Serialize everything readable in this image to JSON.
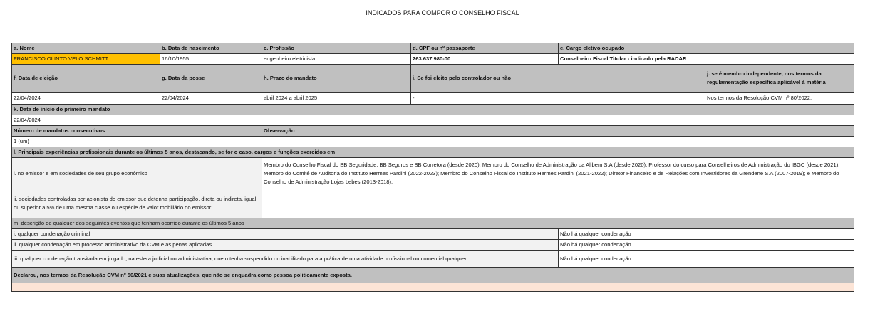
{
  "title": "INDICADOS PARA COMPOR O CONSELHO FISCAL",
  "colors": {
    "header": "#c0c0c0",
    "name_highlight": "#ffc000",
    "footer": "#fce4d6"
  },
  "row1": {
    "labels": [
      "a. Nome",
      "b. Data de nascimento",
      "c. Profissão",
      "d. CPF ou nº passaporte",
      "e. Cargo eletivo ocupado"
    ],
    "values": [
      "FRANCISCO OLINTO VELO SCHMITT",
      "16/10/1955",
      "engenheiro eletricista",
      "263.637.980-00",
      "Conselheiro Fiscal Titular - indicado pela RADAR"
    ]
  },
  "row2": {
    "labels": [
      "f. Data de eleição",
      "g. Data da posse",
      "h. Prazo do mandato",
      "i. Se foi eleito pelo controlador ou não",
      "j. se é membro independente, nos termos da regulamentação específica aplicável à matéria"
    ],
    "values": [
      "22/04/2024",
      "22/04/2024",
      "abril 2024 a abril 2025",
      "-",
      "Nos termos da Resolução CVM nº 80/2022."
    ]
  },
  "first_term": {
    "label": "k. Data de início do primeiro mandato",
    "value": "22/04/2024"
  },
  "terms": {
    "label": "Número de mandatos consecutivos",
    "value": "1 (um)",
    "obs_label": "Observação:"
  },
  "experience": {
    "label": "l. Principais experiências profissionais durante os últimos 5 anos, destacando, se for o caso, cargos e funções exercidos em",
    "items": [
      {
        "label": "i.  no emissor e em sociedades de seu grupo econômico",
        "value": "Membro do Conselho Fiscal do BB Seguridade, BB Seguros e BB Corretora (desde 2020); Membro do Conselho de Administração da Alibem S.A (desde 2020); Professor do curso para Conselheiros de Administração do IBGC (desde 2021); Membro do Comitê de Auditoria do Instituto Hermes Pardini (2022-2023); Membro do Conselho Fiscal do Instituto Hermes Pardini (2021-2022); Diretor Financeiro e de Relações com Investidores da Grendene S.A (2007-2019); e Membro do Conselho de Administração Lojas Lebes (2013-2018)."
      },
      {
        "label": "ii. sociedades controladas por acionista do emissor que detenha participação, direta ou indireta, igual ou superior a 5% de uma mesma classe ou espécie de valor mobiliário do emissor",
        "value": ""
      }
    ]
  },
  "events": {
    "label": "m. descrição de qualquer dos seguintes eventos que tenham ocorrido durante os últimos 5 anos",
    "items": [
      {
        "label": "i. qualquer condenação criminal",
        "value": "Não há qualquer condenação"
      },
      {
        "label": "ii. qualquer condenação em processo administrativo da CVM e as penas aplicadas",
        "value": "Não há qualquer condenação"
      },
      {
        "label": "iii. qualquer condenação transitada em julgado, na esfera judicial ou administrativa, que o tenha suspendido ou inabilitado para a prática de uma atividade profissional ou comercial qualquer",
        "value": "Não há qualquer condenação"
      }
    ]
  },
  "declaration": "Declarou, nos termos da Resolução CVM nº 50/2021 e suas atualizações, que não se enquadra como pessoa politicamente exposta."
}
